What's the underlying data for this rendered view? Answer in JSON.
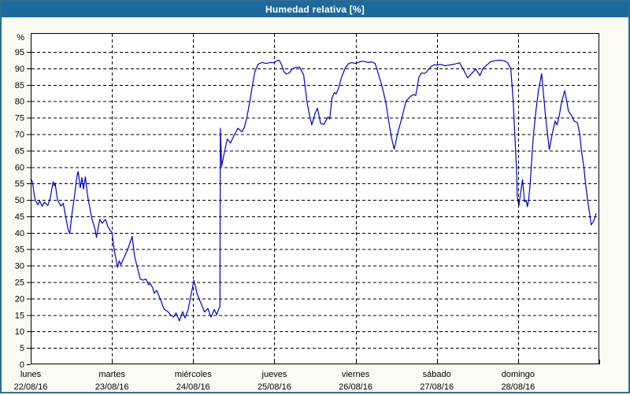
{
  "window": {
    "title": "Humedad relativa [%]"
  },
  "colors": {
    "titlebar_bg": "#1c699c",
    "title_text": "#ffffff",
    "frame_border": "#2b6d90",
    "content_bg": "#fbfbf3",
    "plot_bg": "#ffffff",
    "plot_border": "#000000",
    "gridline": "#000000",
    "line": "#0000c8",
    "label_text": "#000000"
  },
  "chart_data": {
    "type": "line",
    "title": "Humedad relativa [%]",
    "ylabel": "%",
    "ylim": [
      0,
      100.75
    ],
    "xlim_days": [
      0,
      7
    ],
    "grid": "dashed",
    "legend": "none",
    "y_ticks": [
      0,
      5,
      10,
      15,
      20,
      25,
      30,
      35,
      40,
      45,
      50,
      55,
      60,
      65,
      70,
      75,
      80,
      85,
      90,
      95
    ],
    "x_categories": [
      {
        "label": "lunes",
        "date": "22/08/16"
      },
      {
        "label": "martes",
        "date": "23/08/16"
      },
      {
        "label": "miércoles",
        "date": "24/08/16"
      },
      {
        "label": "jueves",
        "date": "25/08/16"
      },
      {
        "label": "viernes",
        "date": "26/08/16"
      },
      {
        "label": "sábado",
        "date": "27/08/16"
      },
      {
        "label": "domingo",
        "date": "28/08/16"
      }
    ],
    "series": [
      {
        "name": "Humedad relativa [%]",
        "points": [
          [
            0.0,
            56.3
          ],
          [
            0.02,
            55.6
          ],
          [
            0.045,
            51.3
          ],
          [
            0.06,
            49.7
          ],
          [
            0.09,
            48.5
          ],
          [
            0.11,
            49.7
          ],
          [
            0.14,
            48.1
          ],
          [
            0.17,
            49.3
          ],
          [
            0.21,
            48.3
          ],
          [
            0.24,
            50.5
          ],
          [
            0.275,
            55.5
          ],
          [
            0.29,
            54.3
          ],
          [
            0.3,
            55.2
          ],
          [
            0.33,
            50.1
          ],
          [
            0.37,
            48.1
          ],
          [
            0.4,
            49.0
          ],
          [
            0.43,
            44.9
          ],
          [
            0.46,
            41.0
          ],
          [
            0.48,
            39.8
          ],
          [
            0.51,
            46.1
          ],
          [
            0.54,
            51.3
          ],
          [
            0.56,
            55.6
          ],
          [
            0.576,
            58.0
          ],
          [
            0.585,
            58.6
          ],
          [
            0.61,
            53.7
          ],
          [
            0.63,
            56.8
          ],
          [
            0.65,
            53.3
          ],
          [
            0.673,
            57.0
          ],
          [
            0.7,
            51.3
          ],
          [
            0.73,
            47.3
          ],
          [
            0.75,
            44.5
          ],
          [
            0.79,
            41.3
          ],
          [
            0.81,
            38.6
          ],
          [
            0.85,
            44.1
          ],
          [
            0.88,
            42.9
          ],
          [
            0.92,
            44.1
          ],
          [
            0.95,
            41.9
          ],
          [
            0.98,
            40.6
          ],
          [
            1.0,
            40.2
          ],
          [
            1.03,
            34.5
          ],
          [
            1.07,
            29.5
          ],
          [
            1.09,
            31.5
          ],
          [
            1.11,
            30.3
          ],
          [
            1.19,
            34.7
          ],
          [
            1.25,
            38.9
          ],
          [
            1.28,
            32.7
          ],
          [
            1.35,
            25.9
          ],
          [
            1.38,
            25.6
          ],
          [
            1.42,
            25.9
          ],
          [
            1.45,
            24.2
          ],
          [
            1.47,
            24.6
          ],
          [
            1.5,
            23.4
          ],
          [
            1.52,
            21.6
          ],
          [
            1.55,
            22.5
          ],
          [
            1.6,
            19.6
          ],
          [
            1.64,
            16.8
          ],
          [
            1.69,
            16.0
          ],
          [
            1.72,
            15.1
          ],
          [
            1.76,
            14.4
          ],
          [
            1.79,
            15.6
          ],
          [
            1.83,
            13.2
          ],
          [
            1.87,
            16.0
          ],
          [
            1.9,
            14.1
          ],
          [
            1.94,
            16.8
          ],
          [
            1.97,
            20.7
          ],
          [
            2.01,
            25.5
          ],
          [
            2.05,
            21.4
          ],
          [
            2.1,
            18.3
          ],
          [
            2.14,
            15.9
          ],
          [
            2.18,
            17.0
          ],
          [
            2.22,
            14.3
          ],
          [
            2.26,
            16.7
          ],
          [
            2.29,
            15.1
          ],
          [
            2.32,
            17.2
          ],
          [
            2.33,
            17.5
          ],
          [
            2.335,
            71.8
          ],
          [
            2.35,
            60.2
          ],
          [
            2.38,
            64.0
          ],
          [
            2.42,
            68.5
          ],
          [
            2.46,
            67.3
          ],
          [
            2.5,
            69.5
          ],
          [
            2.55,
            71.8
          ],
          [
            2.6,
            70.7
          ],
          [
            2.63,
            72.0
          ],
          [
            2.66,
            75.0
          ],
          [
            2.7,
            80.3
          ],
          [
            2.73,
            85.0
          ],
          [
            2.76,
            89.0
          ],
          [
            2.8,
            91.3
          ],
          [
            2.85,
            91.8
          ],
          [
            2.9,
            91.5
          ],
          [
            2.95,
            91.8
          ],
          [
            3.0,
            91.7
          ],
          [
            3.03,
            92.3
          ],
          [
            3.06,
            92.5
          ],
          [
            3.09,
            91.0
          ],
          [
            3.12,
            88.9
          ],
          [
            3.15,
            88.3
          ],
          [
            3.18,
            88.6
          ],
          [
            3.22,
            89.8
          ],
          [
            3.26,
            90.3
          ],
          [
            3.31,
            90.4
          ],
          [
            3.36,
            88.0
          ],
          [
            3.4,
            80.0
          ],
          [
            3.43,
            76.0
          ],
          [
            3.46,
            72.8
          ],
          [
            3.5,
            76.3
          ],
          [
            3.53,
            77.9
          ],
          [
            3.57,
            73.2
          ],
          [
            3.61,
            73.0
          ],
          [
            3.66,
            75.2
          ],
          [
            3.68,
            74.6
          ],
          [
            3.71,
            81.1
          ],
          [
            3.74,
            82.7
          ],
          [
            3.76,
            82.2
          ],
          [
            3.79,
            84.0
          ],
          [
            3.83,
            87.5
          ],
          [
            3.87,
            90.0
          ],
          [
            3.91,
            91.4
          ],
          [
            3.95,
            91.8
          ],
          [
            4.0,
            91.5
          ],
          [
            4.05,
            92.0
          ],
          [
            4.1,
            92.2
          ],
          [
            4.15,
            91.8
          ],
          [
            4.2,
            92.0
          ],
          [
            4.24,
            91.5
          ],
          [
            4.26,
            90.0
          ],
          [
            4.32,
            85.0
          ],
          [
            4.37,
            80.0
          ],
          [
            4.42,
            72.0
          ],
          [
            4.45,
            68.0
          ],
          [
            4.475,
            65.4
          ],
          [
            4.52,
            70.5
          ],
          [
            4.57,
            75.0
          ],
          [
            4.62,
            80.0
          ],
          [
            4.67,
            81.4
          ],
          [
            4.71,
            82.0
          ],
          [
            4.74,
            81.8
          ],
          [
            4.78,
            87.3
          ],
          [
            4.81,
            88.6
          ],
          [
            4.85,
            88.5
          ],
          [
            4.87,
            88.8
          ],
          [
            4.93,
            90.6
          ],
          [
            4.97,
            91.1
          ],
          [
            5.0,
            91.0
          ],
          [
            5.05,
            91.2
          ],
          [
            5.1,
            90.8
          ],
          [
            5.15,
            91.0
          ],
          [
            5.2,
            91.2
          ],
          [
            5.28,
            91.7
          ],
          [
            5.33,
            89.5
          ],
          [
            5.38,
            87.1
          ],
          [
            5.43,
            88.5
          ],
          [
            5.48,
            89.8
          ],
          [
            5.53,
            87.8
          ],
          [
            5.57,
            90.0
          ],
          [
            5.66,
            92.0
          ],
          [
            5.72,
            92.4
          ],
          [
            5.78,
            92.5
          ],
          [
            5.83,
            92.3
          ],
          [
            5.87,
            91.8
          ],
          [
            5.91,
            90.0
          ],
          [
            5.94,
            80.0
          ],
          [
            5.96,
            70.0
          ],
          [
            5.98,
            60.0
          ],
          [
            5.99,
            51.0
          ],
          [
            6.01,
            48.2
          ],
          [
            6.03,
            52.0
          ],
          [
            6.055,
            56.2
          ],
          [
            6.08,
            49.4
          ],
          [
            6.1,
            49.9
          ],
          [
            6.115,
            47.9
          ],
          [
            6.13,
            50.0
          ],
          [
            6.15,
            55.0
          ],
          [
            6.17,
            63.0
          ],
          [
            6.19,
            70.0
          ],
          [
            6.22,
            77.0
          ],
          [
            6.25,
            83.0
          ],
          [
            6.29,
            88.4
          ],
          [
            6.34,
            75.0
          ],
          [
            6.385,
            65.3
          ],
          [
            6.42,
            70.0
          ],
          [
            6.456,
            74.0
          ],
          [
            6.48,
            72.8
          ],
          [
            6.51,
            76.0
          ],
          [
            6.53,
            79.0
          ],
          [
            6.55,
            81.0
          ],
          [
            6.574,
            83.2
          ],
          [
            6.6,
            80.0
          ],
          [
            6.62,
            77.0
          ],
          [
            6.66,
            75.6
          ],
          [
            6.69,
            74.0
          ],
          [
            6.73,
            73.5
          ],
          [
            6.76,
            70.0
          ],
          [
            6.78,
            65.0
          ],
          [
            6.81,
            60.0
          ],
          [
            6.83,
            55.0
          ],
          [
            6.855,
            50.2
          ],
          [
            6.88,
            46.0
          ],
          [
            6.9,
            42.4
          ],
          [
            6.93,
            43.5
          ],
          [
            6.96,
            45.8
          ]
        ]
      }
    ]
  }
}
